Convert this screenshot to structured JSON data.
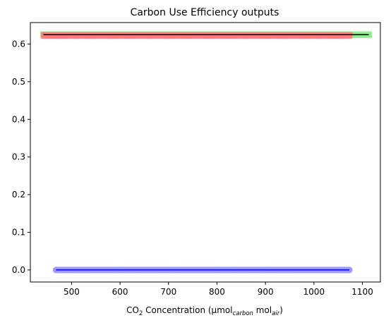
{
  "chart_data": {
    "type": "scatter",
    "title": "Carbon Use Efficiency outputs",
    "xlabel": {
      "parts": [
        {
          "text": "CO",
          "style": "normal"
        },
        {
          "text": "2",
          "style": "sub"
        },
        {
          "text": " Concentration (µmol",
          "style": "normal"
        },
        {
          "text": "carbon",
          "style": "sub-italic"
        },
        {
          "text": " mol",
          "style": "normal"
        },
        {
          "text": "air",
          "style": "sub-italic"
        },
        {
          "text": ")",
          "style": "normal"
        }
      ]
    },
    "ylabel": "",
    "xlim": [
      415,
      1137
    ],
    "ylim": [
      -0.032,
      0.657
    ],
    "xticks": [
      500,
      600,
      700,
      800,
      900,
      1000,
      1100
    ],
    "yticks": [
      0.0,
      0.1,
      0.2,
      0.3,
      0.4,
      0.5,
      0.6
    ],
    "xtick_labels": [
      "500",
      "600",
      "700",
      "800",
      "900",
      "1000",
      "1100"
    ],
    "ytick_labels": [
      "0.0",
      "0.1",
      "0.2",
      "0.3",
      "0.4",
      "0.5",
      "0.6"
    ],
    "grid": false,
    "legend": null,
    "series": [
      {
        "color": "#90ee90",
        "marker": "square",
        "y_value": 0.625,
        "x_range": [
          442,
          1113
        ],
        "x": [
          442,
          480,
          495,
          520,
          560,
          600,
          650,
          700,
          750,
          800,
          850,
          900,
          950,
          990,
          1030,
          1055,
          1070,
          1080,
          1095,
          1113
        ],
        "y": [
          0.625,
          0.625,
          0.625,
          0.625,
          0.625,
          0.625,
          0.625,
          0.625,
          0.625,
          0.625,
          0.625,
          0.625,
          0.625,
          0.625,
          0.625,
          0.625,
          0.625,
          0.625,
          0.625,
          0.625
        ]
      },
      {
        "color": "#ff7f7f",
        "marker": "square",
        "y_value": 0.623,
        "x_range": [
          444,
          1073
        ],
        "x": [
          444,
          460,
          470,
          485,
          510,
          540,
          580,
          620,
          660,
          700,
          740,
          780,
          820,
          860,
          900,
          940,
          980,
          1010,
          1040,
          1060,
          1073
        ],
        "y": [
          0.623,
          0.623,
          0.623,
          0.623,
          0.623,
          0.623,
          0.623,
          0.623,
          0.623,
          0.623,
          0.623,
          0.623,
          0.623,
          0.623,
          0.623,
          0.623,
          0.623,
          0.623,
          0.623,
          0.623,
          0.623
        ]
      },
      {
        "color": "#9a9aff",
        "marker": "circle",
        "y_value": 0.0,
        "x_range": [
          468,
          1073
        ],
        "x": [
          468,
          485,
          495,
          510,
          525,
          545,
          570,
          600,
          640,
          680,
          720,
          760,
          800,
          840,
          880,
          920,
          960,
          990,
          1010,
          1025,
          1040,
          1052,
          1060,
          1073
        ],
        "y": [
          0,
          0,
          0,
          0,
          0,
          0,
          0,
          0,
          0,
          0,
          0,
          0,
          0,
          0,
          0,
          0,
          0,
          0,
          0,
          0,
          0,
          0,
          0,
          0
        ]
      }
    ],
    "fit_lines": [
      {
        "color": "#000000",
        "x": [
          442,
          1113
        ],
        "y": [
          0.625,
          0.625
        ]
      },
      {
        "color": "#0000ff",
        "x": [
          468,
          1073
        ],
        "y": [
          0.0,
          0.0
        ]
      }
    ]
  }
}
